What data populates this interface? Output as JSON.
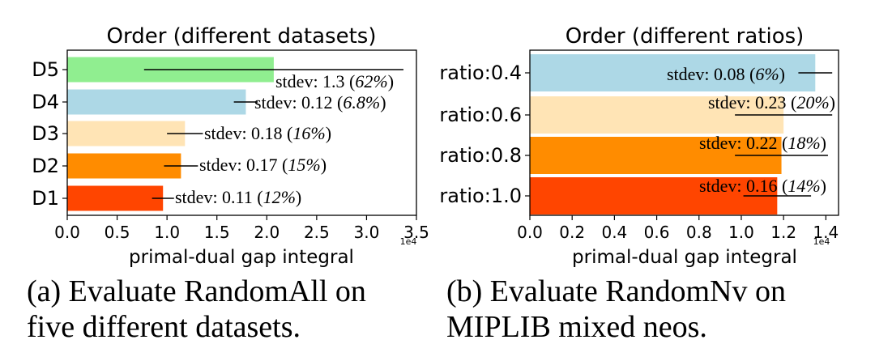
{
  "chart_data": [
    {
      "type": "bar",
      "orientation": "horizontal",
      "title": "Order (different datasets)",
      "categories": [
        "D5",
        "D4",
        "D3",
        "D2",
        "D1"
      ],
      "values": [
        2.07,
        1.79,
        1.18,
        1.14,
        0.96
      ],
      "errors": [
        1.3,
        0.12,
        0.18,
        0.17,
        0.11
      ],
      "colors": [
        "#90ee90",
        "#add8e6",
        "#ffe4b5",
        "#ff8c00",
        "#ff4500"
      ],
      "annotations": [
        {
          "prefix": "stdev: 1.3 (",
          "pct": "62%",
          "suffix": ")"
        },
        {
          "prefix": "stdev: 0.12 (",
          "pct": "6.8%",
          "suffix": ")"
        },
        {
          "prefix": "stdev: 0.18 (",
          "pct": "16%",
          "suffix": ")"
        },
        {
          "prefix": "stdev: 0.17 (",
          "pct": "15%",
          "suffix": ")"
        },
        {
          "prefix": "stdev: 0.11 (",
          "pct": "12%",
          "suffix": ")"
        }
      ],
      "xlim": [
        0,
        3.5
      ],
      "xticks": [
        0.0,
        0.5,
        1.0,
        1.5,
        2.0,
        2.5,
        3.0,
        3.5
      ],
      "xticklabels": [
        "0.0",
        "0.5",
        "1.0",
        "1.5",
        "2.0",
        "2.5",
        "3.0",
        "3.5"
      ],
      "xlabel": "primal-dual gap integral",
      "scale_label": "1e4",
      "caption_lines": [
        "(a) Evaluate RandomAll on",
        "five different datasets."
      ]
    },
    {
      "type": "bar",
      "orientation": "horizontal",
      "title": "Order (different ratios)",
      "categories": [
        "ratio:0.4",
        "ratio:0.6",
        "ratio:0.8",
        "ratio:1.0"
      ],
      "values": [
        1.35,
        1.2,
        1.19,
        1.17
      ],
      "errors": [
        0.08,
        0.23,
        0.22,
        0.16
      ],
      "colors": [
        "#add8e6",
        "#ffe4b5",
        "#ff8c00",
        "#ff4500"
      ],
      "annotations": [
        {
          "prefix": "stdev: 0.08 (",
          "pct": "6%",
          "suffix": ")"
        },
        {
          "prefix": "stdev: 0.23 (",
          "pct": "20%",
          "suffix": ")"
        },
        {
          "prefix": "stdev: 0.22 (",
          "pct": "18%",
          "suffix": ")"
        },
        {
          "prefix": "stdev: 0.16 (",
          "pct": "14%",
          "suffix": ")"
        }
      ],
      "xlim": [
        0,
        1.46
      ],
      "xticks": [
        0.0,
        0.2,
        0.4,
        0.6,
        0.8,
        1.0,
        1.2,
        1.4
      ],
      "xticklabels": [
        "0.0",
        "0.2",
        "0.4",
        "0.6",
        "0.8",
        "1.0",
        "1.2",
        "1.4"
      ],
      "xlabel": "primal-dual gap integral",
      "scale_label": "1e4",
      "caption_lines": [
        "(b) Evaluate RandomNv on",
        "MIPLIB mixed neos."
      ]
    }
  ]
}
